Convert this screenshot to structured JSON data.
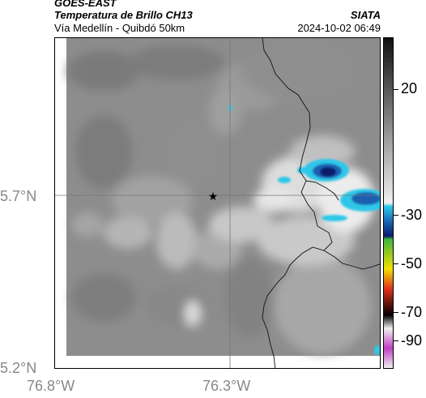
{
  "header": {
    "satellite": "GOES-EAST",
    "product": "Temperatura de Brillo CH13",
    "route": "Vía Medellín - Quibdó 50km",
    "org": "SIATA",
    "datetime": "2024-10-02 06:49"
  },
  "axes": {
    "lat_labels": [
      "5.7°N",
      "5.2°N"
    ],
    "lon_labels": [
      "76.8°W",
      "76.3°W"
    ]
  },
  "colorbar": {
    "labels": [
      "20",
      "-30",
      "-50",
      "-70",
      "-90"
    ],
    "colors": {
      "warm_gray_top": "#111111",
      "mid_gray": "#9a9a9a",
      "light": "#f0f0f0",
      "cyan": "#2ec7e8",
      "blue": "#1a5fb0",
      "navy": "#0d1a6b",
      "green": "#3fb53f",
      "yellow": "#f2e000",
      "red": "#e0301e",
      "black": "#000000",
      "magenta": "#c040c0"
    }
  },
  "map": {
    "marker_icon": "star-icon"
  }
}
